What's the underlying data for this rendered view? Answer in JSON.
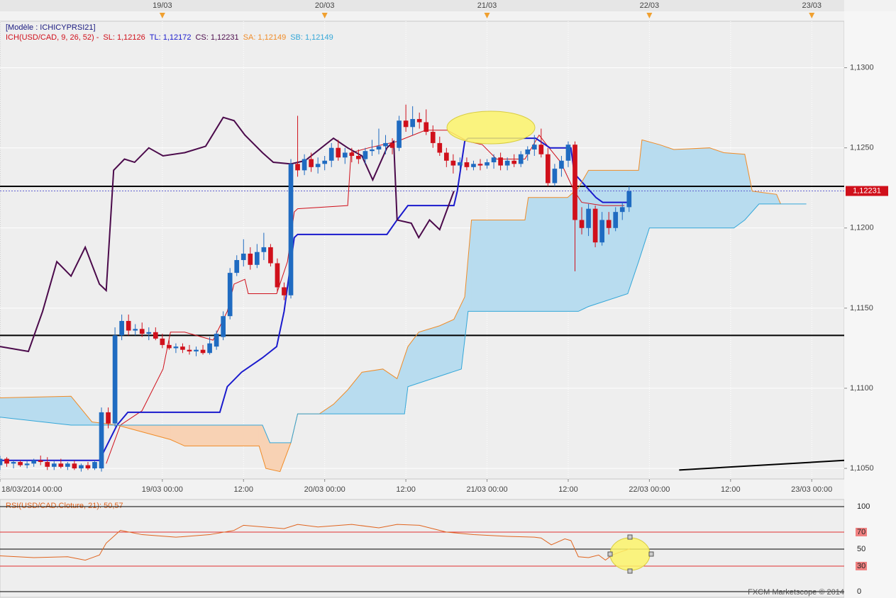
{
  "chart_data": [
    {
      "type": "candlestick",
      "model": "[Modèle : ICHICYPRSI21]",
      "indicator": "ICH(USD/CAD, 9, 26, 52) -",
      "xlim": [
        0,
        124.8
      ],
      "ylim": [
        1.10434,
        1.1329
      ],
      "yticks": [
        {
          "value": 1.105,
          "label": "1,1050"
        },
        {
          "value": 1.11,
          "label": "1,1100"
        },
        {
          "value": 1.115,
          "label": "1,1150"
        },
        {
          "value": 1.12,
          "label": "1,1200"
        },
        {
          "value": 1.125,
          "label": "1,1250"
        },
        {
          "value": 1.13,
          "label": "1,1300"
        }
      ],
      "xticks": [
        {
          "value": 0,
          "label": "18/03/2014 00:00"
        },
        {
          "value": 24,
          "label": "19/03 00:00"
        },
        {
          "value": 36,
          "label": "12:00"
        },
        {
          "value": 48,
          "label": "20/03 00:00"
        },
        {
          "value": 60,
          "label": "12:00"
        },
        {
          "value": 72,
          "label": "21/03 00:00"
        },
        {
          "value": 84,
          "label": "12:00"
        },
        {
          "value": 96,
          "label": "22/03 00:00"
        },
        {
          "value": 108,
          "label": "12:00"
        },
        {
          "value": 120,
          "label": "23/03 00:00"
        }
      ],
      "top_ticks": [
        {
          "value": 24,
          "label": "19/03"
        },
        {
          "value": 48,
          "label": "20/03"
        },
        {
          "value": 72,
          "label": "21/03"
        },
        {
          "value": 96,
          "label": "22/03"
        },
        {
          "value": 120,
          "label": "23/03"
        }
      ],
      "grid": true,
      "up_color": "#1f6bc1",
      "down_color": "#d0101b",
      "x": [
        0,
        1,
        2,
        3,
        4,
        5,
        6,
        7,
        8,
        9,
        10,
        11,
        12,
        13,
        14,
        15,
        16,
        17,
        18,
        19,
        20,
        21,
        22,
        23,
        24,
        25,
        26,
        27,
        28,
        29,
        30,
        31,
        32,
        33,
        34,
        35,
        36,
        37,
        38,
        39,
        40,
        41,
        42,
        43,
        44,
        45,
        46,
        47,
        48,
        49,
        50,
        51,
        52,
        53,
        54,
        55,
        56,
        57,
        58,
        59,
        60,
        61,
        62,
        63,
        64,
        65,
        66,
        67,
        68,
        69,
        70,
        71,
        72,
        73,
        74,
        75,
        76,
        77,
        78,
        79,
        80,
        81,
        82,
        83,
        84,
        85,
        86,
        87,
        88,
        89,
        90,
        91,
        92,
        93
      ],
      "open": [
        1.1052,
        1.1056,
        1.1053,
        1.1054,
        1.1052,
        1.1053,
        1.1055,
        1.1054,
        1.1051,
        1.1053,
        1.1051,
        1.1053,
        1.105,
        1.1052,
        1.105,
        1.105,
        1.1085,
        1.1078,
        1.1133,
        1.1142,
        1.1136,
        1.1137,
        1.1134,
        1.1135,
        1.1131,
        1.1127,
        1.1125,
        1.1126,
        1.1124,
        1.1123,
        1.1124,
        1.1122,
        1.1126,
        1.1132,
        1.1145,
        1.1172,
        1.118,
        1.1184,
        1.1177,
        1.1185,
        1.1188,
        1.1178,
        1.1163,
        1.1158,
        1.124,
        1.1236,
        1.1243,
        1.1238,
        1.124,
        1.1242,
        1.125,
        1.1244,
        1.1247,
        1.1245,
        1.1243,
        1.1248,
        1.1249,
        1.1251,
        1.1253,
        1.125,
        1.1267,
        1.1263,
        1.1268,
        1.1266,
        1.126,
        1.1253,
        1.1247,
        1.1242,
        1.1239,
        1.1241,
        1.1238,
        1.124,
        1.1239,
        1.1241,
        1.1244,
        1.1239,
        1.1242,
        1.124,
        1.1246,
        1.1249,
        1.1252,
        1.1246,
        1.1228,
        1.1237,
        1.1242,
        1.1252,
        1.1205,
        1.12,
        1.1212,
        1.1191,
        1.1205,
        1.12,
        1.121,
        1.1213
      ],
      "high": [
        1.1058,
        1.1057,
        1.1055,
        1.1055,
        1.1055,
        1.1056,
        1.1058,
        1.1057,
        1.1055,
        1.1056,
        1.1054,
        1.1055,
        1.1053,
        1.1054,
        1.1055,
        1.1088,
        1.1088,
        1.1138,
        1.1146,
        1.1146,
        1.114,
        1.1141,
        1.1138,
        1.1138,
        1.1134,
        1.113,
        1.1128,
        1.1128,
        1.1127,
        1.1126,
        1.1127,
        1.1132,
        1.1136,
        1.1148,
        1.1175,
        1.1183,
        1.1193,
        1.1188,
        1.119,
        1.1197,
        1.119,
        1.1181,
        1.1166,
        1.1243,
        1.127,
        1.1246,
        1.1247,
        1.1244,
        1.1245,
        1.1253,
        1.1255,
        1.125,
        1.125,
        1.1249,
        1.125,
        1.1255,
        1.1262,
        1.1258,
        1.1256,
        1.127,
        1.1277,
        1.1276,
        1.1272,
        1.1274,
        1.1264,
        1.1257,
        1.125,
        1.1246,
        1.1244,
        1.1244,
        1.1242,
        1.1243,
        1.1243,
        1.1246,
        1.1247,
        1.1244,
        1.1246,
        1.1248,
        1.1251,
        1.1258,
        1.1262,
        1.125,
        1.124,
        1.1245,
        1.1254,
        1.1254,
        1.1213,
        1.1215,
        1.1214,
        1.121,
        1.121,
        1.1213,
        1.1216,
        1.1226
      ],
      "low": [
        1.1049,
        1.1051,
        1.105,
        1.1051,
        1.105,
        1.1051,
        1.1052,
        1.1049,
        1.1049,
        1.105,
        1.1049,
        1.1049,
        1.1048,
        1.1049,
        1.1049,
        1.1048,
        1.1075,
        1.1076,
        1.113,
        1.1133,
        1.1133,
        1.1132,
        1.113,
        1.113,
        1.1125,
        1.1124,
        1.1122,
        1.1122,
        1.1121,
        1.112,
        1.1121,
        1.1121,
        1.1124,
        1.113,
        1.1143,
        1.117,
        1.1176,
        1.1174,
        1.1175,
        1.118,
        1.1176,
        1.116,
        1.1155,
        1.1156,
        1.1232,
        1.1233,
        1.1235,
        1.1234,
        1.1236,
        1.1238,
        1.1242,
        1.124,
        1.1241,
        1.124,
        1.124,
        1.1245,
        1.1246,
        1.1246,
        1.1246,
        1.1248,
        1.126,
        1.1258,
        1.1262,
        1.1258,
        1.125,
        1.1245,
        1.1238,
        1.1234,
        1.1236,
        1.1236,
        1.1236,
        1.1236,
        1.1237,
        1.1237,
        1.1236,
        1.1236,
        1.1238,
        1.1238,
        1.1242,
        1.1245,
        1.1244,
        1.1226,
        1.1226,
        1.1232,
        1.1238,
        1.1173,
        1.1196,
        1.1195,
        1.1188,
        1.1189,
        1.1196,
        1.1198,
        1.1205,
        1.121
      ],
      "close": [
        1.1056,
        1.1053,
        1.1054,
        1.1052,
        1.1053,
        1.1055,
        1.1054,
        1.1051,
        1.1053,
        1.1051,
        1.1053,
        1.105,
        1.1052,
        1.105,
        1.1054,
        1.1085,
        1.1078,
        1.1133,
        1.1142,
        1.1136,
        1.1137,
        1.1134,
        1.1135,
        1.1131,
        1.1127,
        1.1125,
        1.1126,
        1.1124,
        1.1123,
        1.1124,
        1.1122,
        1.1128,
        1.1134,
        1.1145,
        1.1172,
        1.118,
        1.1184,
        1.1177,
        1.1185,
        1.1188,
        1.1178,
        1.1163,
        1.1158,
        1.124,
        1.1236,
        1.1243,
        1.1238,
        1.124,
        1.1242,
        1.125,
        1.1244,
        1.1247,
        1.1245,
        1.1243,
        1.1248,
        1.1249,
        1.1251,
        1.1253,
        1.125,
        1.1267,
        1.1263,
        1.1268,
        1.1266,
        1.126,
        1.1253,
        1.1247,
        1.1242,
        1.1239,
        1.1241,
        1.1238,
        1.124,
        1.1239,
        1.1241,
        1.1244,
        1.1239,
        1.1242,
        1.124,
        1.1246,
        1.1249,
        1.1252,
        1.1246,
        1.1228,
        1.1237,
        1.1242,
        1.1252,
        1.1205,
        1.12,
        1.1212,
        1.1191,
        1.1205,
        1.12,
        1.121,
        1.1213,
        1.1223
      ],
      "series": [
        {
          "name": "SL: 1,12126",
          "color": "#d0101b",
          "width": 1,
          "x": [
            15.7,
            17.8,
            21.0,
            24.1,
            25.2,
            27.3,
            31.5,
            33.6,
            34.6,
            36.2,
            36.7,
            40.9,
            42.5,
            43.5,
            44.0,
            51.4,
            51.9,
            54.5,
            58.7,
            62.9,
            66.1,
            69.2,
            71.3,
            73.4,
            77.6,
            79.7,
            80.8,
            82.9,
            84.9,
            86.0,
            89.1,
            92.3
          ],
          "values": [
            1.1053,
            1.1077,
            1.1086,
            1.1112,
            1.1135,
            1.1135,
            1.113,
            1.1148,
            1.1165,
            1.1168,
            1.1159,
            1.1159,
            1.1179,
            1.121,
            1.1212,
            1.1214,
            1.1247,
            1.125,
            1.1254,
            1.1261,
            1.1261,
            1.1254,
            1.1252,
            1.1243,
            1.1243,
            1.1258,
            1.1252,
            1.1241,
            1.1223,
            1.1216,
            1.1214,
            1.1214
          ]
        },
        {
          "name": "TL: 1,12172",
          "color": "#1a1acd",
          "width": 2,
          "x": [
            0,
            14.7,
            17.3,
            18.9,
            32.5,
            33.6,
            35.7,
            38.8,
            40.9,
            42.0,
            43.5,
            44.0,
            57.2,
            58.7,
            60.3,
            67.1,
            67.6,
            68.7,
            69.2,
            79.2,
            81.3,
            84.4,
            84.9,
            88.1,
            89.1,
            93.2
          ],
          "values": [
            1.1055,
            1.1055,
            1.1077,
            1.1085,
            1.1085,
            1.1101,
            1.111,
            1.1119,
            1.1126,
            1.1148,
            1.1194,
            1.1196,
            1.1196,
            1.1205,
            1.1214,
            1.1214,
            1.1223,
            1.1254,
            1.1256,
            1.1256,
            1.125,
            1.125,
            1.1234,
            1.1219,
            1.1216,
            1.1216
          ]
        },
        {
          "name": "CS: 1,12231",
          "color": "#4b0a4b",
          "width": 2,
          "x": [
            0,
            4.2,
            6.3,
            8.4,
            10.5,
            12.6,
            14.7,
            15.7,
            16.8,
            18.4,
            19.9,
            22.0,
            24.1,
            27.3,
            30.4,
            33.0,
            34.6,
            36.2,
            38.8,
            40.4,
            43.0,
            45.1,
            49.3,
            51.4,
            53.5,
            55.1,
            57.2,
            58.2,
            58.7,
            60.8,
            61.9,
            63.5,
            65.0,
            67.1
          ],
          "values": [
            1.1126,
            1.1123,
            1.1148,
            1.1179,
            1.117,
            1.1188,
            1.1165,
            1.1161,
            1.1236,
            1.1243,
            1.1241,
            1.125,
            1.1245,
            1.1247,
            1.1251,
            1.1269,
            1.1267,
            1.1258,
            1.1247,
            1.1241,
            1.124,
            1.1242,
            1.1256,
            1.125,
            1.1245,
            1.123,
            1.125,
            1.1254,
            1.1205,
            1.1203,
            1.1194,
            1.1205,
            1.1199,
            1.1223
          ]
        },
        {
          "name": "SA: 1,12149",
          "color": "#f08c28",
          "width": 1,
          "x": [
            0,
            10.5,
            13.6,
            17.3,
            25.2,
            27.3,
            38.3,
            39.3,
            41.4,
            43.0,
            44.0,
            47.2,
            49.3,
            51.4,
            53.5,
            56.6,
            58.7,
            60.3,
            61.9,
            65.0,
            67.1,
            68.7,
            69.7,
            77.6,
            78.1,
            83.9,
            85.5,
            87.0,
            94.4,
            94.9,
            97.5,
            99.6,
            104.9,
            107.0,
            110.1,
            111.2,
            114.8,
            115.4
          ],
          "values": [
            1.1094,
            1.1095,
            1.1079,
            1.1077,
            1.1068,
            1.1064,
            1.1064,
            1.105,
            1.1048,
            1.1066,
            1.1084,
            1.1084,
            1.109,
            1.1099,
            1.111,
            1.1112,
            1.1106,
            1.1126,
            1.1135,
            1.1139,
            1.1143,
            1.1157,
            1.1205,
            1.1205,
            1.1219,
            1.1219,
            1.1225,
            1.1236,
            1.1236,
            1.1255,
            1.1252,
            1.1249,
            1.125,
            1.1247,
            1.1246,
            1.1223,
            1.1221,
            1.1215
          ]
        },
        {
          "name": "SB: 1,12149",
          "color": "#35a7d8",
          "width": 1,
          "x": [
            0,
            10.5,
            38.8,
            39.9,
            43.0,
            44.0,
            59.8,
            60.3,
            68.2,
            69.2,
            85.5,
            87.0,
            92.8,
            94.4,
            96.0,
            108.5,
            110.1,
            112.2,
            119.2
          ],
          "values": [
            1.1082,
            1.1077,
            1.1077,
            1.1066,
            1.1066,
            1.1084,
            1.1084,
            1.1101,
            1.1112,
            1.1148,
            1.1148,
            1.1151,
            1.1159,
            1.1179,
            1.12,
            1.12,
            1.1205,
            1.1215,
            1.1215
          ]
        }
      ],
      "cloud_colors": [
        "#b8dcef",
        "#f8d2b4"
      ],
      "levels": [
        1.1226,
        1.1133
      ],
      "trendline": {
        "x": [
          100.4,
          124.8
        ],
        "values": [
          1.1049,
          1.1055
        ]
      },
      "last_price": {
        "value": 1.12231,
        "label": "1,12231"
      }
    },
    {
      "type": "line",
      "title": "RSI(USD/CAD.Cloture, 21): 50,57",
      "color": "#e0641e",
      "xlim": [
        0,
        124.8
      ],
      "ylim": [
        -6.7,
        108.3
      ],
      "yticks": [
        0,
        30,
        50,
        70,
        100
      ],
      "x": [
        0,
        5,
        10,
        12.6,
        14.7,
        15.7,
        17.8,
        21,
        26,
        31,
        34.6,
        36,
        42,
        44,
        47,
        52,
        56,
        58.7,
        62,
        66,
        70,
        75,
        79,
        80,
        81.5,
        83.5,
        84.4,
        85.5,
        87,
        88.5,
        89.5,
        90.5,
        91.5,
        93.2
      ],
      "values": [
        42,
        40,
        41,
        37,
        43,
        57,
        72,
        67,
        64,
        67,
        72,
        78,
        74,
        79,
        76,
        79,
        75,
        79,
        78,
        70,
        67,
        65,
        64,
        63,
        55,
        62,
        60,
        41,
        40,
        43,
        37,
        43,
        46,
        50.57
      ]
    }
  ],
  "footer": "FXCM Marketscope © 2014"
}
